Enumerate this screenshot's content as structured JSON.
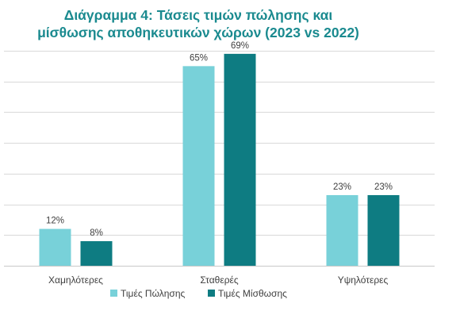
{
  "chart_data": {
    "type": "bar",
    "title_lines": [
      "Διάγραμμα 4: Τάσεις τιμών πώλησης και",
      "μίσθωσης αποθηκευτικών χώρων (2023 vs 2022)"
    ],
    "categories": [
      "Χαμηλότερες",
      "Σταθερές",
      "Υψηλότερες"
    ],
    "series": [
      {
        "name": "Τιμές Πώλησης",
        "values": [
          12,
          65,
          23
        ],
        "labels": [
          "12%",
          "65%",
          "23%"
        ],
        "color": "#78d1d9"
      },
      {
        "name": "Τιμές Μίσθωσης",
        "values": [
          8,
          69,
          23
        ],
        "labels": [
          "8%",
          "69%",
          "23%"
        ],
        "color": "#0e7c82"
      }
    ],
    "ylim": [
      0,
      70
    ],
    "gridlines": [
      0,
      10,
      20,
      30,
      40,
      50,
      60,
      70
    ],
    "grid": true,
    "legend_position": "bottom",
    "unit": "%"
  }
}
